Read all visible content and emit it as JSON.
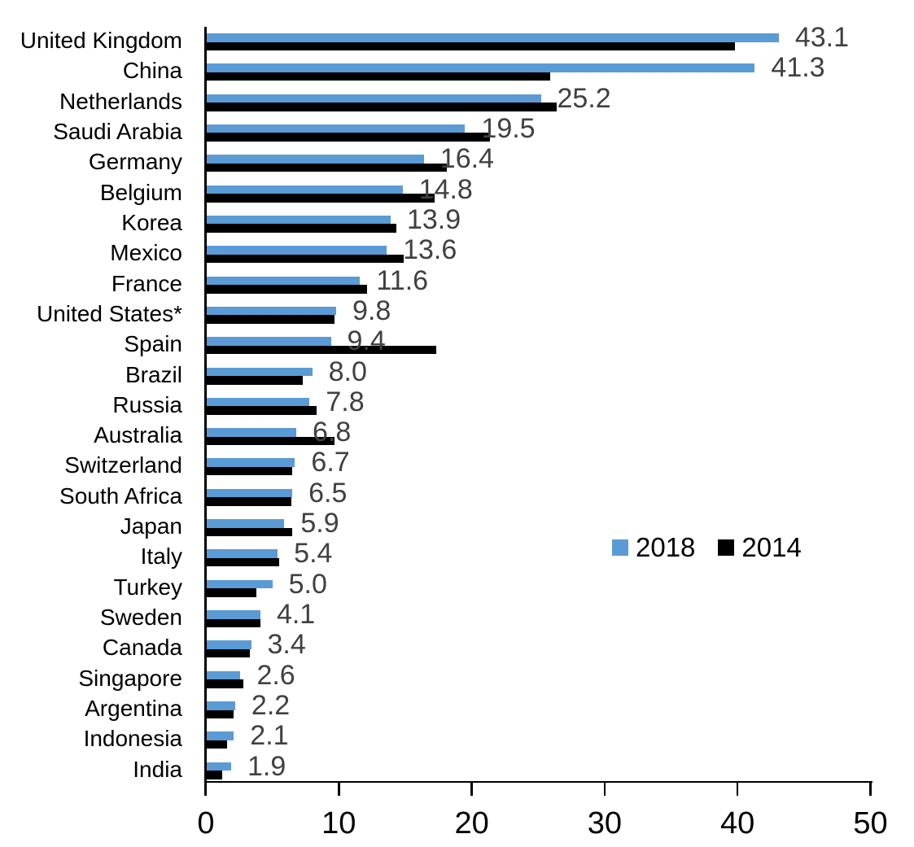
{
  "chart_data": {
    "type": "bar",
    "orientation": "horizontal",
    "title": "",
    "xlabel": "",
    "ylabel": "",
    "xlim": [
      0,
      50
    ],
    "xticks": [
      0,
      10,
      20,
      30,
      40,
      50
    ],
    "grid": false,
    "legend_position": "middle-right",
    "categories": [
      "United Kingdom",
      "China",
      "Netherlands",
      "Saudi Arabia",
      "Germany",
      "Belgium",
      "Korea",
      "Mexico",
      "France",
      "United States*",
      "Spain",
      "Brazil",
      "Russia",
      "Australia",
      "Switzerland",
      "South Africa",
      "Japan",
      "Italy",
      "Turkey",
      "Sweden",
      "Canada",
      "Singapore",
      "Argentina",
      "Indonesia",
      "India"
    ],
    "series": [
      {
        "name": "2018",
        "color": "#5B9BD5",
        "data_labels_shown": true,
        "values": [
          43.1,
          41.3,
          25.2,
          19.5,
          16.4,
          14.8,
          13.9,
          13.6,
          11.6,
          9.8,
          9.4,
          8.0,
          7.8,
          6.8,
          6.7,
          6.5,
          5.9,
          5.4,
          5.0,
          4.1,
          3.4,
          2.6,
          2.2,
          2.1,
          1.9
        ]
      },
      {
        "name": "2014",
        "color": "#000000",
        "data_labels_shown": false,
        "values": [
          39.8,
          25.9,
          26.4,
          21.4,
          18.1,
          17.2,
          14.3,
          14.9,
          12.1,
          9.7,
          17.3,
          7.3,
          8.3,
          9.7,
          6.5,
          6.4,
          6.5,
          5.5,
          3.8,
          4.1,
          3.3,
          2.8,
          2.1,
          1.6,
          1.2
        ]
      }
    ],
    "data_label_color": "#404040",
    "axis_color": "#000000"
  },
  "legend": {
    "items": [
      {
        "label": "2018",
        "color": "#5B9BD5"
      },
      {
        "label": "2014",
        "color": "#000000"
      }
    ]
  }
}
